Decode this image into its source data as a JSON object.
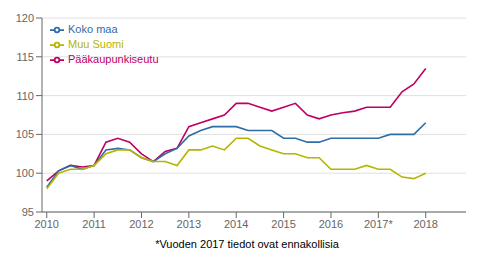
{
  "chart_data": {
    "type": "line",
    "footnote": "*Vuoden 2017 tiedot ovat ennakollisia",
    "x": [
      2010,
      2010.25,
      2010.5,
      2010.75,
      2011,
      2011.25,
      2011.5,
      2011.75,
      2012,
      2012.25,
      2012.5,
      2012.75,
      2013,
      2013.25,
      2013.5,
      2013.75,
      2014,
      2014.25,
      2014.5,
      2014.75,
      2015,
      2015.25,
      2015.5,
      2015.75,
      2016,
      2016.25,
      2016.5,
      2016.75,
      2017,
      2017.25,
      2017.5,
      2017.75,
      2018
    ],
    "series": [
      {
        "name": "Pääkaupunkiseutu",
        "color": "#be0064",
        "values": [
          99.0,
          100.3,
          101.0,
          100.8,
          101.0,
          104.0,
          104.5,
          104.0,
          102.5,
          101.5,
          102.8,
          103.2,
          106.0,
          106.5,
          107.0,
          107.5,
          109.0,
          109.0,
          108.5,
          108.0,
          108.5,
          109.0,
          107.5,
          107.0,
          107.5,
          107.8,
          108.0,
          108.5,
          108.5,
          108.5,
          110.5,
          111.5,
          113.5
        ]
      },
      {
        "name": "Koko maa",
        "color": "#2e6ea6",
        "values": [
          98.2,
          100.3,
          101.0,
          100.5,
          101.0,
          103.0,
          103.2,
          103.0,
          102.0,
          101.5,
          102.5,
          103.2,
          104.8,
          105.5,
          106.0,
          106.0,
          106.0,
          105.5,
          105.5,
          105.5,
          104.5,
          104.5,
          104.0,
          104.0,
          104.5,
          104.5,
          104.5,
          104.5,
          104.5,
          105.0,
          105.0,
          105.0,
          106.5
        ]
      },
      {
        "name": "Muu Suomi",
        "color": "#b5b500",
        "values": [
          98.0,
          100.0,
          100.5,
          100.5,
          101.0,
          102.5,
          103.0,
          103.0,
          102.0,
          101.5,
          101.5,
          101.0,
          103.0,
          103.0,
          103.5,
          103.0,
          104.5,
          104.5,
          103.5,
          103.0,
          102.5,
          102.5,
          102.0,
          102.0,
          100.5,
          100.5,
          100.5,
          101.0,
          100.5,
          100.5,
          99.5,
          99.3,
          100.0
        ]
      }
    ],
    "xlim": [
      2009.9,
      2018.85
    ],
    "xticks": [
      2010,
      2011,
      2012,
      2013,
      2014,
      2015,
      2016,
      {
        "value": 2017,
        "label": "2017*"
      },
      2018
    ],
    "ylim": [
      95,
      120
    ],
    "yticks": [
      95,
      100,
      105,
      110,
      115,
      120
    ],
    "grid": "y",
    "legend": "upper left"
  }
}
